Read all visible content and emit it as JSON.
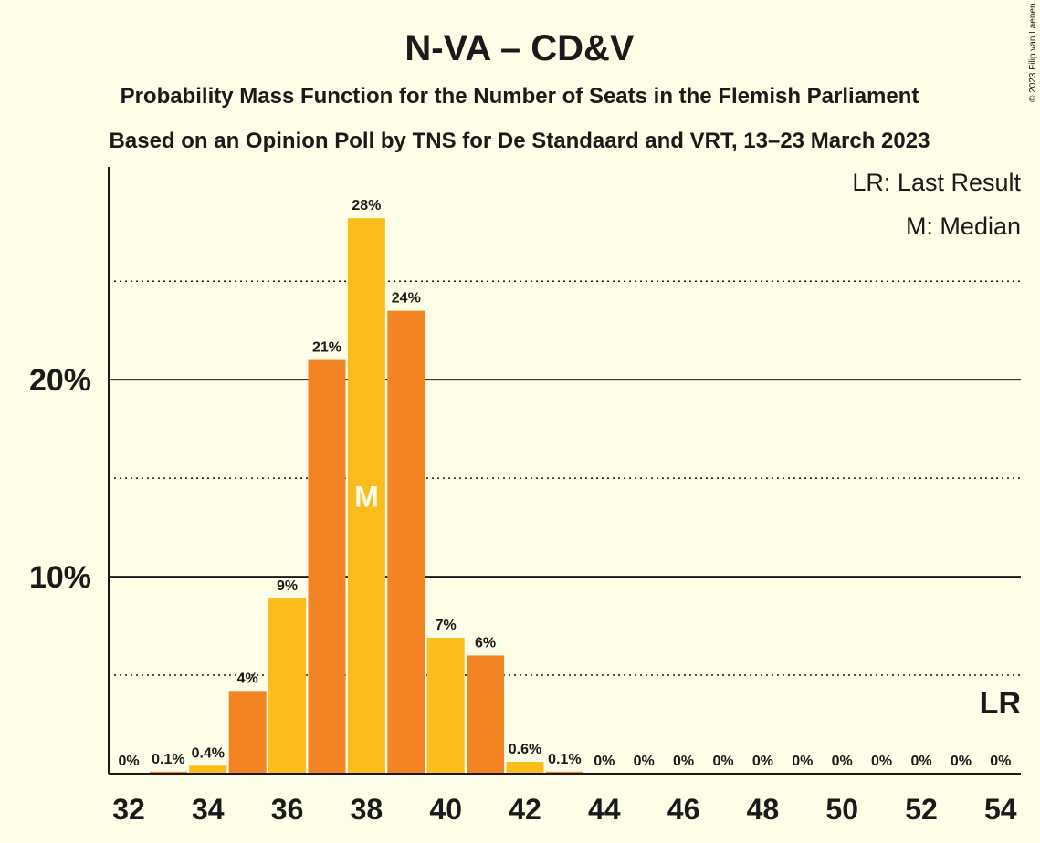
{
  "chart_data": {
    "type": "bar",
    "title": "N-VA – CD&V",
    "subtitle_1": "Probability Mass Function for the Number of Seats in the Flemish Parliament",
    "subtitle_2": "Based on an Opinion Poll by TNS for De Standaard and VRT, 13–23 March 2023",
    "copyright": "© 2023 Filip van Laenen",
    "legend": {
      "last_result": "LR: Last Result",
      "median": "M: Median",
      "placement": "top-right"
    },
    "x": [
      32,
      33,
      34,
      35,
      36,
      37,
      38,
      39,
      40,
      41,
      42,
      43,
      44,
      45,
      46,
      47,
      48,
      49,
      50,
      51,
      52,
      53,
      54
    ],
    "values": [
      0,
      0.1,
      0.4,
      4.2,
      8.9,
      21.0,
      28.2,
      23.5,
      6.9,
      6.0,
      0.6,
      0.1,
      0,
      0,
      0,
      0,
      0,
      0,
      0,
      0,
      0,
      0,
      0
    ],
    "data_labels": [
      "0%",
      "0.1%",
      "0.4%",
      "4%",
      "9%",
      "21%",
      "28%",
      "24%",
      "7%",
      "6%",
      "0.6%",
      "0.1%",
      "0%",
      "0%",
      "0%",
      "0%",
      "0%",
      "0%",
      "0%",
      "0%",
      "0%",
      "0%",
      "0%"
    ],
    "x_tick_labels": [
      "32",
      "34",
      "36",
      "38",
      "40",
      "42",
      "44",
      "46",
      "48",
      "50",
      "52",
      "54"
    ],
    "y_ticks": [
      {
        "value": 10,
        "label": "10%"
      },
      {
        "value": 20,
        "label": "20%"
      }
    ],
    "y_dotted_gridlines": [
      5,
      15,
      25
    ],
    "ylim": [
      0,
      30.8
    ],
    "median_seat": 38,
    "median_label": "M",
    "last_result_seat": 54,
    "last_result_label": "LR",
    "colors": {
      "bar_even": "#fbbd1b",
      "bar_odd": "#f28424",
      "background": "#fefde7",
      "text": "#1a1a1a"
    }
  }
}
